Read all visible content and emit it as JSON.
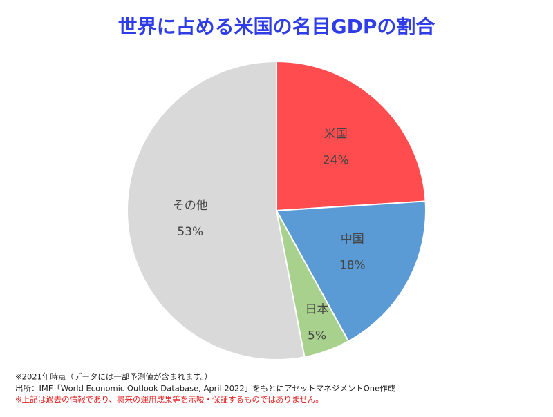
{
  "chart_data": {
    "type": "pie",
    "title": "世界に占める米国の名目GDPの割合",
    "categories": [
      "米国",
      "中国",
      "日本",
      "その他"
    ],
    "values": [
      24,
      18,
      5,
      53
    ],
    "value_labels": [
      "24%",
      "18%",
      "5%",
      "53%"
    ],
    "colors": [
      "#ff4d4f",
      "#5b9bd5",
      "#a9d18e",
      "#d9d9d9"
    ],
    "notes": [
      "※2021年時点（データには一部予測値が含まれます。）",
      "出所：IMF「World Economic Outlook Database, April 2022」をもとにアセットマネジメントOne作成",
      "※上記は過去の情報であり、将来の運用成果等を示唆・保証するものではありません。"
    ]
  }
}
